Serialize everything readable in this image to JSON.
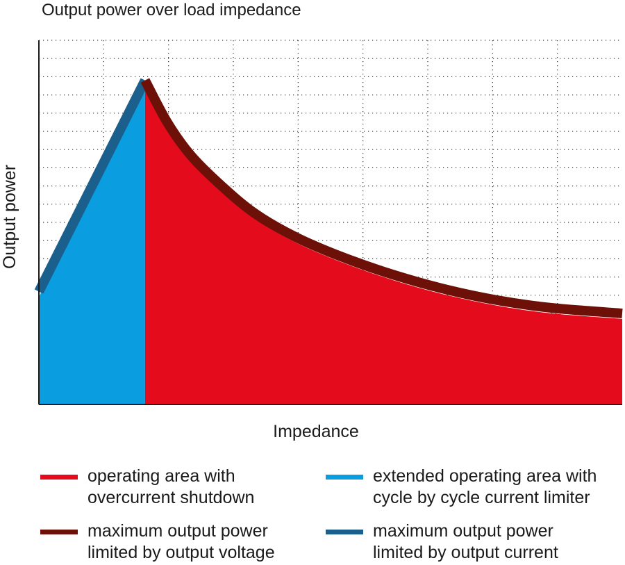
{
  "chart_data": {
    "type": "area",
    "title": "Output power over load impedance",
    "xlabel": "Impedance",
    "ylabel": "Output power",
    "xlim": [
      0,
      1
    ],
    "ylim": [
      0,
      1
    ],
    "x_ticks_shown": false,
    "y_ticks_shown": false,
    "grid": true,
    "grid_style": "dotted",
    "legend_position": "bottom",
    "series": [
      {
        "name": "extended operating area with cycle by cycle current limiter",
        "role": "fill",
        "color": "#0a9ee0",
        "x": [
          0,
          0.182
        ],
        "y": [
          0.295,
          0.875
        ]
      },
      {
        "name": "operating area with overcurrent shutdown",
        "role": "fill",
        "color": "#e30b1c",
        "x": [
          0.182,
          0.22,
          0.26,
          0.31,
          0.37,
          0.44,
          0.52,
          0.61,
          0.7,
          0.79,
          0.88,
          1.0
        ],
        "y": [
          0.875,
          0.76,
          0.67,
          0.59,
          0.51,
          0.445,
          0.39,
          0.34,
          0.3,
          0.27,
          0.25,
          0.235
        ]
      },
      {
        "name": "maximum output power limited by output current",
        "role": "line",
        "color": "#1b5f8c",
        "x": [
          0,
          0.182
        ],
        "y": [
          0.31,
          0.89
        ]
      },
      {
        "name": "maximum output power limited by output voltage",
        "role": "line",
        "color": "#6d1108",
        "x": [
          0.182,
          0.22,
          0.26,
          0.31,
          0.37,
          0.44,
          0.52,
          0.61,
          0.7,
          0.79,
          0.88,
          1.0
        ],
        "y": [
          0.89,
          0.775,
          0.685,
          0.605,
          0.525,
          0.46,
          0.405,
          0.355,
          0.315,
          0.285,
          0.265,
          0.25
        ]
      }
    ]
  },
  "legend": {
    "items": [
      {
        "label_line1": "operating area with",
        "label_line2": "overcurrent shutdown",
        "color": "#e30b1c"
      },
      {
        "label_line1": "extended operating area with",
        "label_line2": "cycle by cycle current limiter",
        "color": "#0a9ee0"
      },
      {
        "label_line1": "maximum output power",
        "label_line2": "limited by output voltage",
        "color": "#6d1108"
      },
      {
        "label_line1": "maximum output power",
        "label_line2": "limited by output current",
        "color": "#1b5f8c"
      }
    ]
  }
}
